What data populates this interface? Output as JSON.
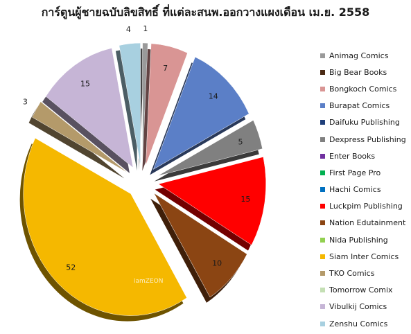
{
  "chart_data": {
    "type": "pie",
    "title": "การ์ตูนผู้ชายฉบับลิขสิทธิ์ ที่แต่ละสนพ.ออกวางแผงเดือน เม.ย. 2558",
    "legend_position": "right",
    "watermark": "iamZEON",
    "slices": [
      {
        "label": "Animag Comics",
        "value": 1,
        "color": "#9a9a9a"
      },
      {
        "label": "Big Bear Books",
        "value": 0,
        "color": "#4a2a14"
      },
      {
        "label": "Bongkoch Comics",
        "value": 7,
        "color": "#d99594"
      },
      {
        "label": "Burapat Comics",
        "value": 14,
        "color": "#5b7fc7"
      },
      {
        "label": "Daifuku Publishing",
        "value": 0,
        "color": "#1f3f7a"
      },
      {
        "label": "Dexpress Publishing",
        "value": 5,
        "color": "#808080"
      },
      {
        "label": "Enter Books",
        "value": 0,
        "color": "#7030a0"
      },
      {
        "label": "First Page Pro",
        "value": 0,
        "color": "#00b050"
      },
      {
        "label": "Hachi Comics",
        "value": 0,
        "color": "#0070c0"
      },
      {
        "label": "Luckpim Publishing",
        "value": 15,
        "color": "#ff0000"
      },
      {
        "label": "Nation Edutainment",
        "value": 10,
        "color": "#8b4513"
      },
      {
        "label": "Nida Publishing",
        "value": 0,
        "color": "#92d050"
      },
      {
        "label": "Siam Inter Comics",
        "value": 52,
        "color": "#f5b800"
      },
      {
        "label": "TKO Comics",
        "value": 3,
        "color": "#b49a6a"
      },
      {
        "label": "Tomorrow Comix",
        "value": 0,
        "color": "#c4dfb4"
      },
      {
        "label": "Vibulkij Comics",
        "value": 15,
        "color": "#c6b5d6"
      },
      {
        "label": "Zenshu Comics",
        "value": 4,
        "color": "#a8d0e0"
      }
    ]
  }
}
